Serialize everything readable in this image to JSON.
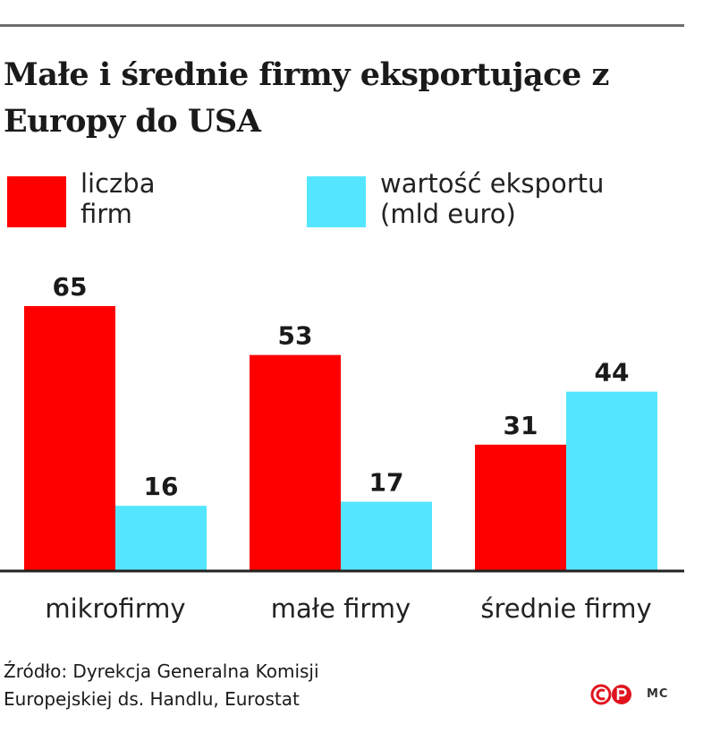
{
  "title": "Małe i średnie firmy eksportujące z Europy do USA",
  "legend": [
    {
      "label_line1": "liczba",
      "label_line2": "firm",
      "color": "#ff0000"
    },
    {
      "label_line1": "wartość eksportu",
      "label_line2": "(mld euro)",
      "color": "#55e6ff"
    }
  ],
  "source_line1": "Źródło: Dyrekcja Generalna Komisji",
  "source_line2": "Europejskiej ds. Handlu, Eurostat",
  "author": "MC",
  "chart_data": {
    "type": "bar",
    "categories": [
      "mikrofirmy",
      "małe firmy",
      "średnie firmy"
    ],
    "series": [
      {
        "name": "liczba firm",
        "values": [
          65,
          53,
          31
        ],
        "color": "#ff0000"
      },
      {
        "name": "wartość eksportu (mld euro)",
        "values": [
          16,
          17,
          44
        ],
        "color": "#55e6ff"
      }
    ],
    "title": "Małe i średnie firmy eksportujące z Europy do USA",
    "xlabel": "",
    "ylabel": "",
    "ylim": [
      0,
      65
    ],
    "grid": false,
    "legend_position": "top"
  }
}
